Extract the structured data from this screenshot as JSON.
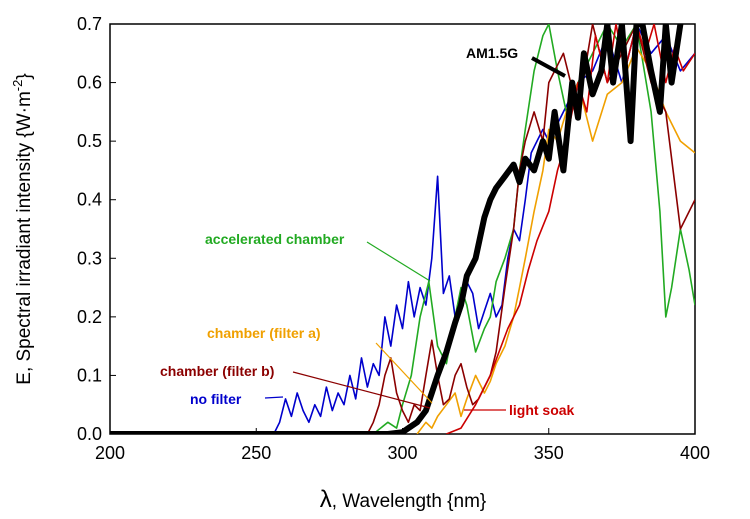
{
  "chart_data": {
    "type": "line",
    "title": "",
    "xlabel_symbol": "λ",
    "xlabel_text": ", Wavelength {nm}",
    "ylabel_main": "E, Spectral irradiant intensity {W·m",
    "ylabel_sup": "-2",
    "ylabel_close": "}",
    "xlim": [
      200,
      400
    ],
    "ylim": [
      0,
      0.7
    ],
    "xticks": [
      200,
      250,
      300,
      350,
      400
    ],
    "xtick_labels": [
      "200",
      "250",
      "300",
      "350",
      "400"
    ],
    "yticks": [
      0.0,
      0.1,
      0.2,
      0.3,
      0.4,
      0.5,
      0.6,
      0.7
    ],
    "ytick_labels": [
      "0.0",
      "0.1",
      "0.2",
      "0.3",
      "0.4",
      "0.5",
      "0.6",
      "0.7"
    ],
    "grid": false,
    "series": [
      {
        "name": "AM1.5G",
        "color": "#000000",
        "x": [
          200,
          250,
          295,
          300,
          302,
          305,
          308,
          310,
          312,
          315,
          318,
          320,
          322,
          325,
          328,
          330,
          332,
          335,
          338,
          340,
          342,
          345,
          348,
          350,
          352,
          355,
          358,
          360,
          362,
          365,
          368,
          370,
          372,
          375,
          378,
          380,
          382,
          385,
          388,
          390,
          392,
          395
        ],
        "y": [
          0,
          0,
          0,
          0.003,
          0.01,
          0.02,
          0.04,
          0.07,
          0.1,
          0.14,
          0.19,
          0.22,
          0.27,
          0.3,
          0.37,
          0.4,
          0.42,
          0.44,
          0.46,
          0.43,
          0.47,
          0.45,
          0.5,
          0.47,
          0.55,
          0.45,
          0.6,
          0.54,
          0.65,
          0.58,
          0.62,
          0.7,
          0.6,
          0.7,
          0.5,
          0.7,
          0.7,
          0.62,
          0.55,
          0.7,
          0.6,
          0.7
        ]
      },
      {
        "name": "no filter",
        "color": "#0000cc",
        "x": [
          256,
          258,
          260,
          262,
          264,
          266,
          268,
          270,
          272,
          274,
          276,
          278,
          280,
          282,
          284,
          286,
          288,
          290,
          292,
          294,
          296,
          298,
          300,
          302,
          304,
          306,
          308,
          310,
          312,
          314,
          316,
          318,
          320,
          322,
          324,
          326,
          328,
          330,
          332,
          334,
          336,
          338,
          340,
          342,
          344,
          346,
          348,
          350,
          355,
          360,
          365,
          370,
          375,
          380,
          385,
          390,
          395,
          400
        ],
        "y": [
          0,
          0.02,
          0.06,
          0.03,
          0.07,
          0.04,
          0.02,
          0.05,
          0.03,
          0.08,
          0.04,
          0.07,
          0.05,
          0.1,
          0.06,
          0.13,
          0.08,
          0.12,
          0.1,
          0.2,
          0.15,
          0.22,
          0.18,
          0.26,
          0.2,
          0.25,
          0.22,
          0.3,
          0.44,
          0.24,
          0.27,
          0.2,
          0.22,
          0.26,
          0.24,
          0.18,
          0.21,
          0.24,
          0.2,
          0.22,
          0.3,
          0.35,
          0.33,
          0.4,
          0.48,
          0.5,
          0.52,
          0.5,
          0.55,
          0.6,
          0.62,
          0.68,
          0.6,
          0.7,
          0.65,
          0.68,
          0.62,
          0.65
        ]
      },
      {
        "name": "accelerated chamber",
        "color": "#22aa22",
        "x": [
          290,
          295,
          298,
          300,
          303,
          306,
          309,
          312,
          315,
          318,
          320,
          322,
          325,
          328,
          330,
          332,
          335,
          338,
          340,
          342,
          345,
          348,
          350,
          353,
          356,
          360,
          365,
          370,
          375,
          380,
          385,
          388,
          390,
          392,
          395,
          398,
          400
        ],
        "y": [
          0,
          0.02,
          0.01,
          0.05,
          0.1,
          0.2,
          0.26,
          0.15,
          0.12,
          0.2,
          0.25,
          0.22,
          0.14,
          0.18,
          0.2,
          0.26,
          0.3,
          0.35,
          0.45,
          0.52,
          0.62,
          0.68,
          0.7,
          0.62,
          0.55,
          0.6,
          0.65,
          0.7,
          0.66,
          0.7,
          0.55,
          0.38,
          0.2,
          0.25,
          0.35,
          0.28,
          0.22
        ]
      },
      {
        "name": "chamber (filter a)",
        "color": "#f0a000",
        "x": [
          305,
          308,
          310,
          312,
          315,
          318,
          320,
          322,
          325,
          328,
          330,
          332,
          335,
          338,
          340,
          342,
          345,
          348,
          350,
          353,
          356,
          360,
          365,
          370,
          375,
          380,
          385,
          390,
          395,
          400
        ],
        "y": [
          0,
          0.02,
          0.01,
          0.03,
          0.05,
          0.07,
          0.03,
          0.06,
          0.1,
          0.07,
          0.09,
          0.12,
          0.15,
          0.2,
          0.25,
          0.3,
          0.38,
          0.45,
          0.52,
          0.5,
          0.55,
          0.6,
          0.5,
          0.58,
          0.6,
          0.66,
          0.62,
          0.55,
          0.5,
          0.48
        ]
      },
      {
        "name": "chamber (filter b)",
        "color": "#8b0000",
        "x": [
          288,
          290,
          292,
          294,
          296,
          298,
          300,
          302,
          304,
          306,
          308,
          310,
          312,
          314,
          316,
          318,
          320,
          322,
          324,
          326,
          328,
          330,
          332,
          335,
          338,
          340,
          342,
          345,
          348,
          350,
          355,
          360,
          365,
          370,
          375,
          380,
          385,
          390,
          395,
          400
        ],
        "y": [
          0,
          0.02,
          0.05,
          0.1,
          0.13,
          0.07,
          0.04,
          0.02,
          0.05,
          0.04,
          0.1,
          0.16,
          0.1,
          0.05,
          0.06,
          0.1,
          0.12,
          0.08,
          0.05,
          0.06,
          0.08,
          0.1,
          0.14,
          0.25,
          0.35,
          0.45,
          0.5,
          0.55,
          0.5,
          0.6,
          0.65,
          0.55,
          0.7,
          0.6,
          0.65,
          0.7,
          0.6,
          0.55,
          0.35,
          0.4
        ]
      },
      {
        "name": "light soak",
        "color": "#cc0000",
        "x": [
          315,
          320,
          325,
          330,
          333,
          336,
          340,
          343,
          346,
          350,
          353,
          356,
          360,
          363,
          366,
          370,
          373,
          376,
          380,
          383,
          386,
          390,
          393,
          396,
          400
        ],
        "y": [
          0,
          0.01,
          0.05,
          0.1,
          0.14,
          0.18,
          0.22,
          0.28,
          0.33,
          0.38,
          0.45,
          0.5,
          0.6,
          0.55,
          0.68,
          0.6,
          0.7,
          0.62,
          0.7,
          0.65,
          0.7,
          0.6,
          0.66,
          0.62,
          0.65
        ]
      }
    ],
    "annotations": [
      {
        "label": "AM1.5G",
        "color": "#000000",
        "series": "AM1.5G",
        "arrow_to": [
          355,
          0.59
        ]
      },
      {
        "label": "accelerated chamber",
        "color": "#22aa22",
        "series": "accelerated chamber",
        "arrow_to": [
          311,
          0.265
        ]
      },
      {
        "label": "chamber (filter a)",
        "color": "#f0a000",
        "series": "chamber (filter a)",
        "arrow_to": [
          311,
          0.048
        ]
      },
      {
        "label": "chamber (filter b)",
        "color": "#8b0000",
        "series": "chamber (filter b)",
        "arrow_to": [
          311,
          0.042
        ]
      },
      {
        "label": "no filter",
        "color": "#0000cc",
        "series": "no filter",
        "arrow_to": [
          269,
          0.062
        ]
      },
      {
        "label": "light soak",
        "color": "#cc0000",
        "series": "light soak",
        "arrow_to": [
          317,
          0.042
        ]
      }
    ]
  }
}
